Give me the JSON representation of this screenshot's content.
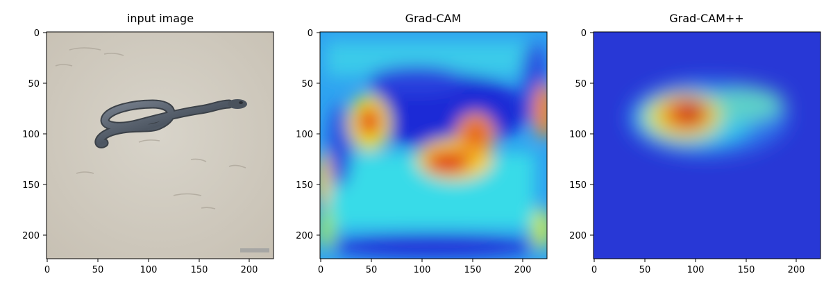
{
  "panels": [
    {
      "title": "input image",
      "content": "photograph: snake on beach sand",
      "x_ticks": [
        "0",
        "50",
        "100",
        "150",
        "200"
      ],
      "y_ticks": [
        "0",
        "50",
        "100",
        "150",
        "200"
      ]
    },
    {
      "title": "Grad-CAM",
      "content": "jet-colormap heatmap overlay",
      "x_ticks": [
        "0",
        "50",
        "100",
        "150",
        "200"
      ],
      "y_ticks": [
        "0",
        "50",
        "100",
        "150",
        "200"
      ]
    },
    {
      "title": "Grad-CAM++",
      "content": "jet-colormap heatmap overlay",
      "x_ticks": [
        "0",
        "50",
        "100",
        "150",
        "200"
      ],
      "y_ticks": [
        "0",
        "50",
        "100",
        "150",
        "200"
      ]
    }
  ],
  "colors": {
    "sand": "#cfc9bd",
    "snake": "#5b6470",
    "jet_low": "#2a3bd8",
    "jet_mid": "#39e3e6",
    "jet_high": "#d91717"
  }
}
